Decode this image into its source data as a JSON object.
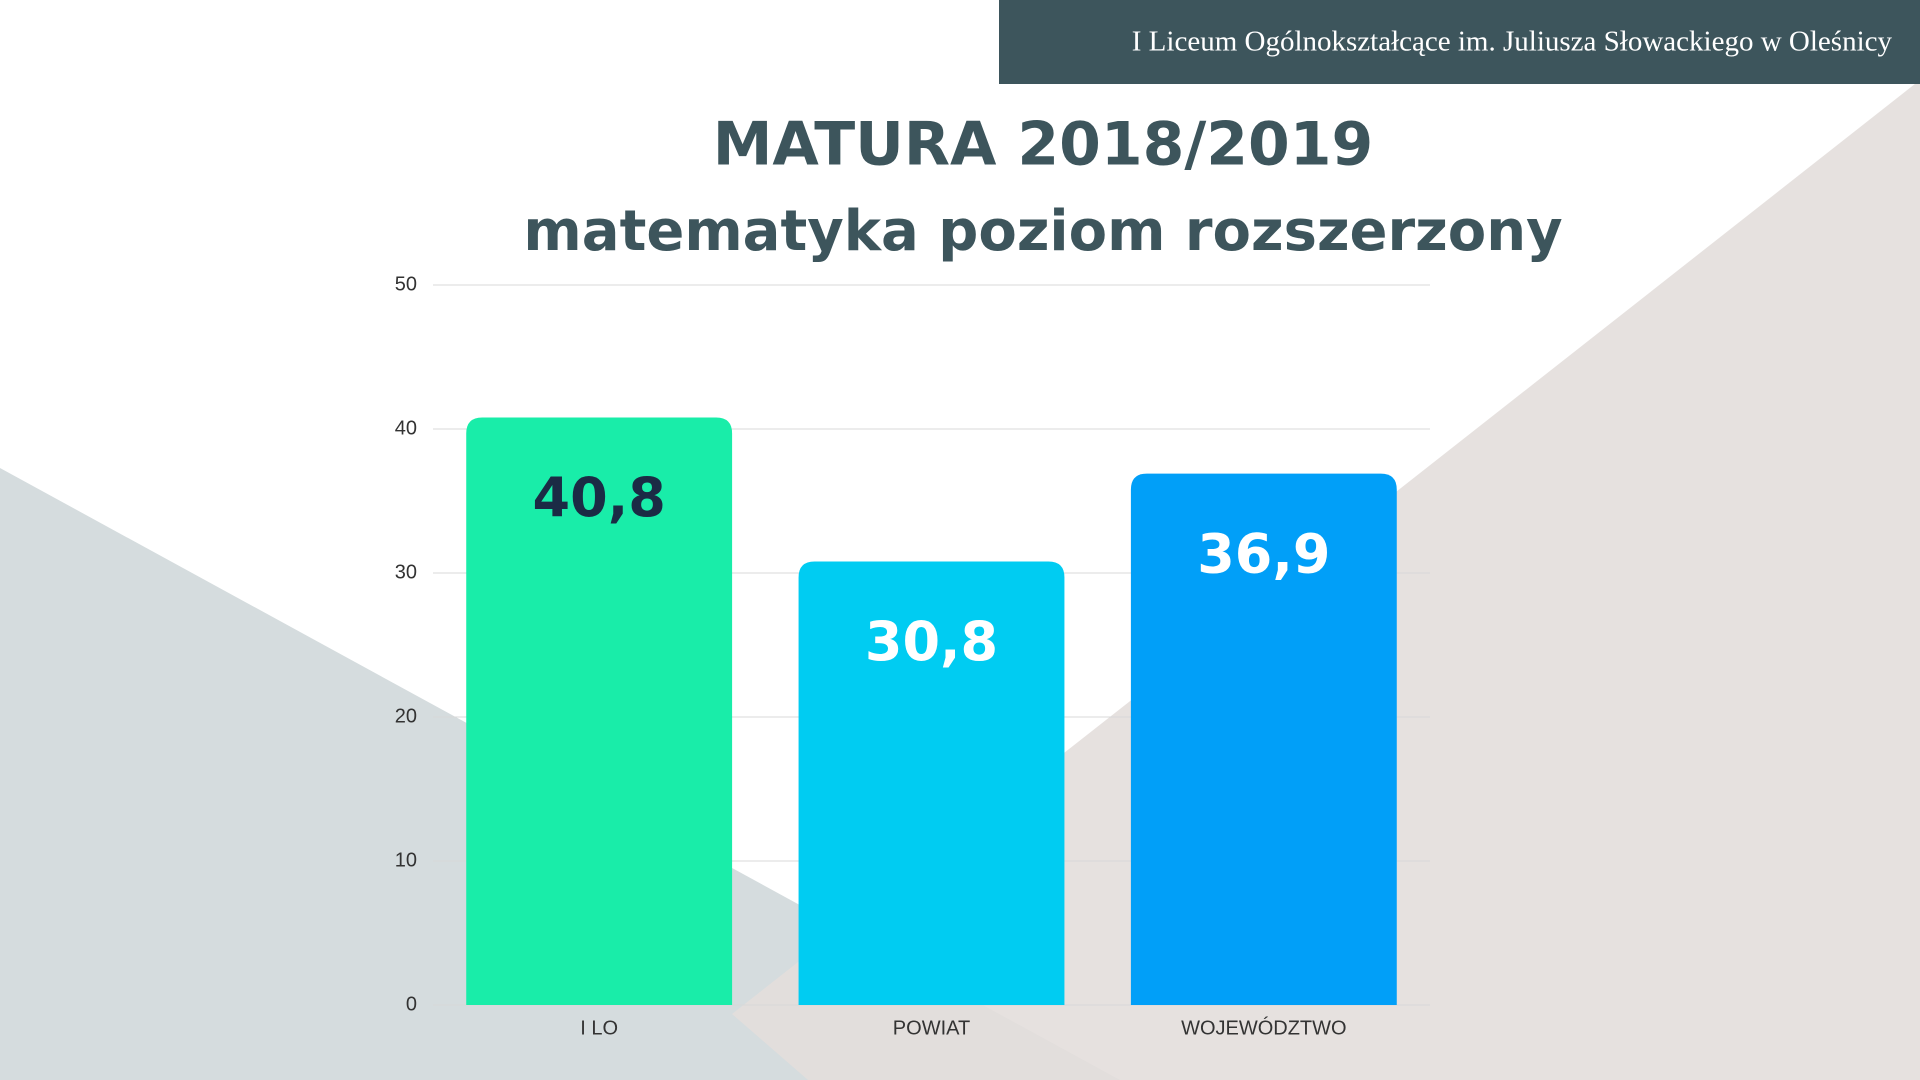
{
  "header": "I Liceum Ogólnokształcące im. Juliusza Słowackiego w Oleśnicy",
  "chart_data": {
    "type": "bar",
    "title": "MATURA 2018/2019",
    "subtitle": "matematyka poziom rozszerzony",
    "categories": [
      "I LO",
      "POWIAT",
      "WOJEWÓDZTWO"
    ],
    "values": [
      40.8,
      30.8,
      36.9
    ],
    "value_labels": [
      "40,8",
      "30,8",
      "36,9"
    ],
    "colors": [
      "#19eda9",
      "#00ccf2",
      "#019ff8"
    ],
    "label_colors": [
      "#1b2b45",
      "#ffffff",
      "#ffffff"
    ],
    "ylim": [
      0,
      50
    ],
    "yticks": [
      0,
      10,
      20,
      30,
      40,
      50
    ],
    "grid": true
  }
}
